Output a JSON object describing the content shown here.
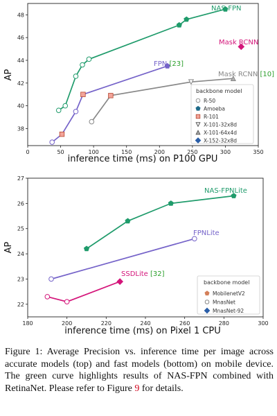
{
  "chart_data": [
    {
      "type": "line",
      "xlabel": "inference time (ms) on P100 GPU",
      "ylabel": "AP",
      "xlim": [
        0,
        350
      ],
      "ylim": [
        36.5,
        49
      ],
      "xticks": [
        0,
        50,
        100,
        150,
        200,
        250,
        300,
        350
      ],
      "yticks": [
        38,
        40,
        42,
        44,
        46,
        48
      ],
      "grid": false,
      "legend_title": "backbone model",
      "legend_position": "right",
      "legend": [
        {
          "label": "R-50",
          "marker": "circle"
        },
        {
          "label": "Amoeba",
          "marker": "pentagon"
        },
        {
          "label": "R-101",
          "marker": "square"
        },
        {
          "label": "X-101-32x8d",
          "marker": "triangle-down"
        },
        {
          "label": "X-101-64x4d",
          "marker": "triangle-up"
        },
        {
          "label": "X-152-32x8d",
          "marker": "diamond"
        }
      ],
      "series": [
        {
          "name": "NAS-FPN",
          "color": "#1f9b6b",
          "points": [
            [
              47,
              39.6
            ],
            [
              57,
              40.0
            ],
            [
              73,
              42.6
            ],
            [
              83,
              43.6
            ],
            [
              93,
              44.1
            ],
            [
              230,
              47.1
            ],
            [
              241,
              47.6
            ],
            [
              300,
              48.5
            ]
          ],
          "markers": [
            "circle",
            "circle",
            "circle",
            "circle",
            "circle",
            "pentagon",
            "pentagon",
            "pentagon"
          ]
        },
        {
          "name": "FPN",
          "color": "#7563c9",
          "points": [
            [
              37,
              36.8
            ],
            [
              52,
              37.5
            ],
            [
              73,
              39.5
            ],
            [
              84,
              41.0
            ],
            [
              212,
              43.5
            ]
          ],
          "markers": [
            "circle",
            "square",
            "circle",
            "square",
            "pentagon"
          ]
        },
        {
          "name": "Mask RCNN",
          "color": "#888888",
          "points": [
            [
              97,
              38.6
            ],
            [
              126,
              40.9
            ],
            [
              248,
              42.1
            ],
            [
              312,
              42.4
            ]
          ],
          "markers": [
            "circle",
            "square",
            "triangle-down",
            "triangle-up"
          ]
        },
        {
          "name": "Mask RCNN",
          "color": "#d4157a",
          "points": [
            [
              324,
              45.2
            ]
          ],
          "markers": [
            "diamond"
          ]
        }
      ],
      "annotations": [
        {
          "text": "NAS-FPN",
          "color": "#1f9b6b"
        },
        {
          "text": "FPN",
          "ref": "[23]",
          "color": "#7563c9"
        },
        {
          "text": "Mask RCNN",
          "ref": "[10]",
          "color": "#888888"
        },
        {
          "text": "Mask RCNN",
          "color": "#d4157a"
        }
      ]
    },
    {
      "type": "line",
      "xlabel": "inference time (ms) on Pixel 1 CPU",
      "ylabel": "AP",
      "xlim": [
        180,
        300
      ],
      "ylim": [
        21.5,
        27
      ],
      "xticks": [
        180,
        200,
        220,
        240,
        260,
        280,
        300
      ],
      "yticks": [
        22,
        23,
        24,
        25,
        26,
        27
      ],
      "grid": false,
      "legend_title": "backbone model",
      "legend_position": "lower right",
      "legend": [
        {
          "label": "MobilenetV2",
          "marker": "pentagon"
        },
        {
          "label": "MnasNet",
          "marker": "circle"
        },
        {
          "label": "MnasNet-92",
          "marker": "diamond"
        }
      ],
      "series": [
        {
          "name": "NAS-FPNLite",
          "color": "#1f9b6b",
          "points": [
            [
              210,
              24.2
            ],
            [
              231,
              25.3
            ],
            [
              253,
              26.0
            ],
            [
              285,
              26.3
            ]
          ],
          "markers": [
            "pentagon",
            "pentagon",
            "pentagon",
            "pentagon"
          ]
        },
        {
          "name": "FPNLite",
          "color": "#7563c9",
          "points": [
            [
              192,
              23.0
            ],
            [
              265,
              24.6
            ]
          ],
          "markers": [
            "circle",
            "circle"
          ]
        },
        {
          "name": "SSDLite",
          "color": "#d4157a",
          "points": [
            [
              190,
              22.3
            ],
            [
              200,
              22.1
            ],
            [
              227,
              22.9
            ]
          ],
          "markers": [
            "circle",
            "circle",
            "diamond"
          ]
        }
      ],
      "annotations": [
        {
          "text": "NAS-FPNLite",
          "color": "#1f9b6b"
        },
        {
          "text": "FPNLite",
          "color": "#7563c9"
        },
        {
          "text": "SSDLite",
          "ref": "[32]",
          "color": "#d4157a"
        }
      ]
    }
  ],
  "caption": {
    "part1": "Figure 1: Average Precision vs. inference time per image across accurate models (top) and fast models (bottom) on mobile device. The green curve highlights results of NAS-FPN combined with RetinaNet. Please refer to Figure ",
    "ref": "9",
    "part2": " for details."
  }
}
